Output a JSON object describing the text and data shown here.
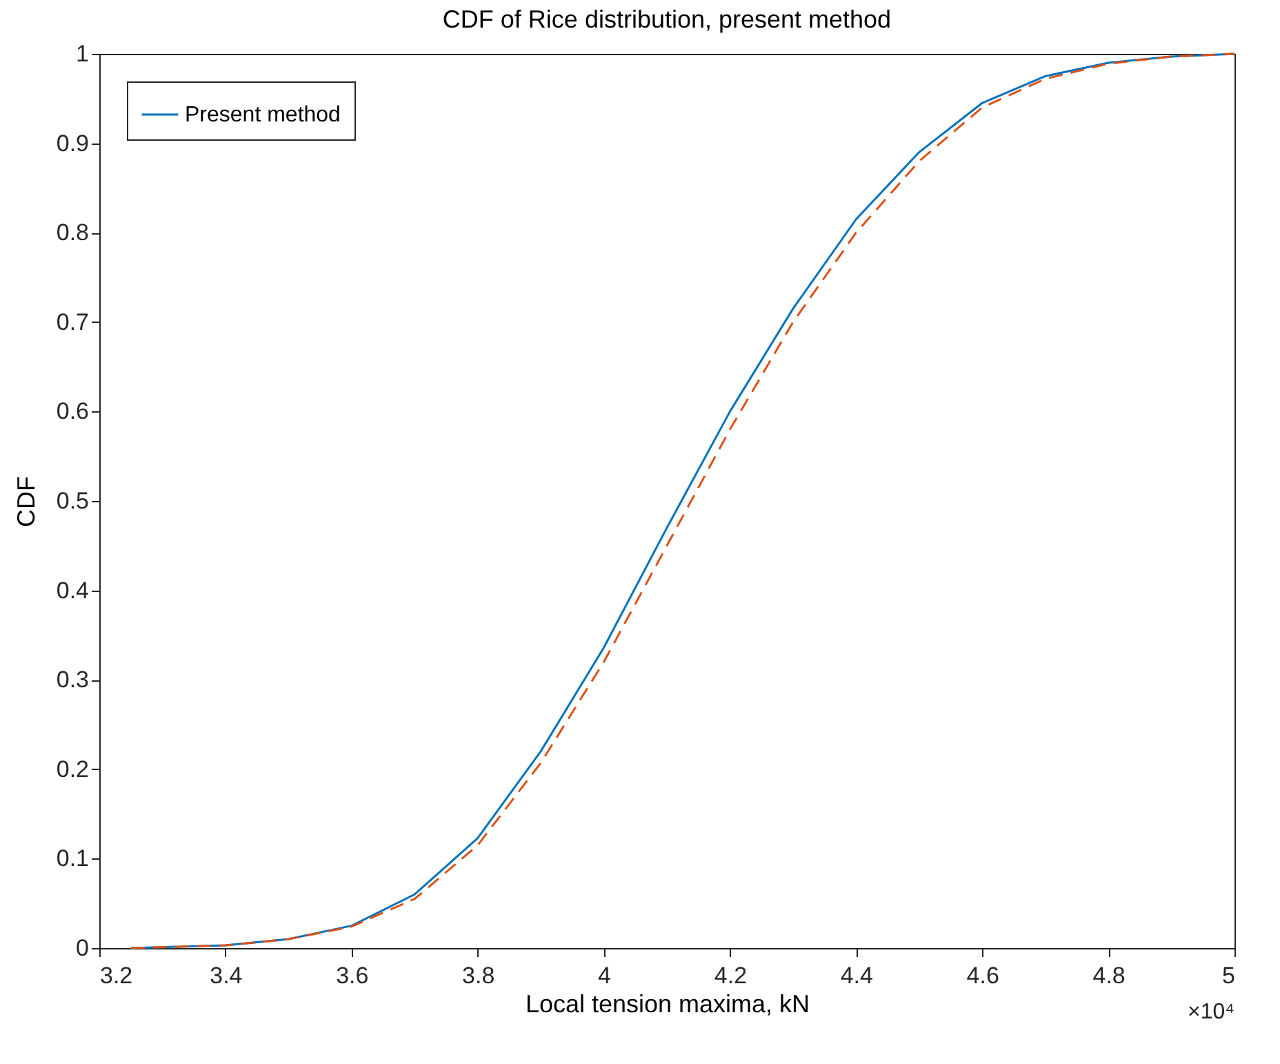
{
  "chart_data": {
    "type": "line",
    "title": "CDF of Rice distribution, present method",
    "xlabel": "Local tension maxima, kN",
    "ylabel": "CDF",
    "annotations": [
      "×10⁴"
    ],
    "x": [
      3.25,
      3.4,
      3.5,
      3.6,
      3.7,
      3.8,
      3.9,
      4.0,
      4.1,
      4.2,
      4.3,
      4.4,
      4.5,
      4.6,
      4.7,
      4.8,
      4.9,
      5.0
    ],
    "series": [
      {
        "name": "Present method",
        "color": "#0072bd",
        "line_style": "solid",
        "values": [
          0,
          0.003,
          0.01,
          0.025,
          0.06,
          0.123,
          0.22,
          0.336,
          0.47,
          0.6,
          0.715,
          0.815,
          0.89,
          0.945,
          0.975,
          0.99,
          0.997,
          1.0
        ]
      },
      {
        "color": "#d95319",
        "line_style": "dashed",
        "values": [
          0,
          0.003,
          0.01,
          0.024,
          0.055,
          0.115,
          0.207,
          0.32,
          0.45,
          0.58,
          0.7,
          0.8,
          0.88,
          0.94,
          0.972,
          0.989,
          0.997,
          1.0
        ]
      }
    ],
    "xlim": [
      3.2,
      5
    ],
    "xticks": [
      3.2,
      3.4,
      3.6,
      3.8,
      4,
      4.2,
      4.4,
      4.6,
      4.8,
      5
    ],
    "ylim": [
      0,
      1
    ],
    "yticks": [
      0,
      0.1,
      0.2,
      0.3,
      0.4,
      0.5,
      0.6,
      0.7,
      0.8,
      0.9,
      1
    ],
    "grid": false,
    "legend": "top left",
    "marker": "none"
  }
}
